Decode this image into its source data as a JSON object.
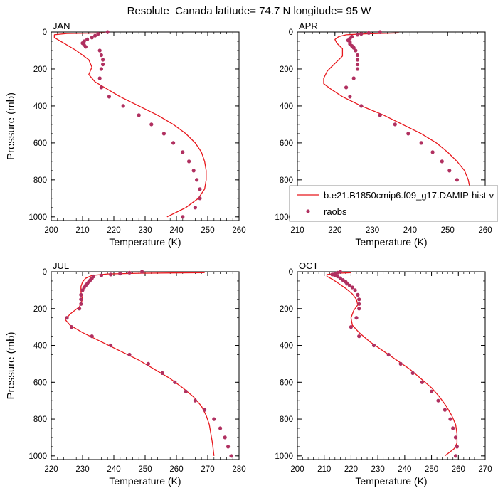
{
  "title": "Resolute_Canada  latitude= 74.7 N longitude= 95 W",
  "legend": {
    "model_label": "b.e21.B1850cmip6.f09_g17.DAMIP-hist-v",
    "obs_label": "raobs"
  },
  "colors": {
    "model_line": "#e8171c",
    "obs_marker": "#b03060",
    "axis": "#000000"
  },
  "chart_data": [
    {
      "type": "line",
      "panel": "JAN",
      "xlabel": "Temperature (K)",
      "ylabel": "Pressure (mb)",
      "xlim": [
        200,
        260
      ],
      "ylim": [
        1020,
        0
      ],
      "xticks": [
        200,
        210,
        220,
        230,
        240,
        250,
        260
      ],
      "yticks": [
        0,
        200,
        400,
        600,
        800,
        1000
      ],
      "model": [
        [
          217,
          5
        ],
        [
          205,
          8
        ],
        [
          201,
          15
        ],
        [
          201,
          30
        ],
        [
          204,
          60
        ],
        [
          208,
          100
        ],
        [
          212,
          150
        ],
        [
          213,
          190
        ],
        [
          212,
          230
        ],
        [
          214,
          270
        ],
        [
          218,
          310
        ],
        [
          222,
          350
        ],
        [
          228,
          400
        ],
        [
          234,
          450
        ],
        [
          239,
          500
        ],
        [
          243,
          550
        ],
        [
          246,
          600
        ],
        [
          248,
          650
        ],
        [
          249,
          700
        ],
        [
          249.5,
          750
        ],
        [
          249.5,
          800
        ],
        [
          249,
          850
        ],
        [
          247,
          900
        ],
        [
          243,
          950
        ],
        [
          237,
          1000
        ]
      ],
      "obs": [
        [
          218,
          0
        ],
        [
          215,
          10
        ],
        [
          214,
          20
        ],
        [
          213,
          30
        ],
        [
          211.5,
          40
        ],
        [
          210.5,
          50
        ],
        [
          210,
          60
        ],
        [
          210.5,
          70
        ],
        [
          211,
          80
        ],
        [
          215.5,
          100
        ],
        [
          216,
          125
        ],
        [
          216.5,
          150
        ],
        [
          216.5,
          175
        ],
        [
          216,
          200
        ],
        [
          215.5,
          250
        ],
        [
          216,
          300
        ],
        [
          218.5,
          350
        ],
        [
          223,
          400
        ],
        [
          228,
          450
        ],
        [
          232,
          500
        ],
        [
          236,
          550
        ],
        [
          239,
          600
        ],
        [
          242,
          650
        ],
        [
          244,
          700
        ],
        [
          245.5,
          750
        ],
        [
          246.5,
          800
        ],
        [
          247.5,
          850
        ],
        [
          247.5,
          900
        ],
        [
          246,
          950
        ],
        [
          242,
          1000
        ]
      ]
    },
    {
      "type": "line",
      "panel": "APR",
      "xlabel": "Temperature (K)",
      "ylabel": "",
      "xlim": [
        210,
        260
      ],
      "ylim": [
        1020,
        0
      ],
      "xticks": [
        210,
        220,
        230,
        240,
        250,
        260
      ],
      "yticks": [
        0,
        200,
        400,
        600,
        800,
        1000
      ],
      "model": [
        [
          237,
          5
        ],
        [
          228,
          10
        ],
        [
          223,
          15
        ],
        [
          221,
          25
        ],
        [
          220,
          40
        ],
        [
          220.5,
          60
        ],
        [
          222,
          90
        ],
        [
          222,
          130
        ],
        [
          220,
          170
        ],
        [
          218,
          210
        ],
        [
          217,
          250
        ],
        [
          217,
          280
        ],
        [
          219,
          310
        ],
        [
          222,
          350
        ],
        [
          227,
          400
        ],
        [
          233,
          450
        ],
        [
          238,
          500
        ],
        [
          243,
          550
        ],
        [
          247,
          600
        ],
        [
          250,
          650
        ],
        [
          252.5,
          700
        ],
        [
          254.5,
          750
        ],
        [
          255.5,
          800
        ],
        [
          256,
          850
        ],
        [
          255,
          900
        ],
        [
          253,
          950
        ],
        [
          249,
          1000
        ]
      ],
      "obs": [
        [
          232,
          0
        ],
        [
          229,
          5
        ],
        [
          227,
          10
        ],
        [
          226,
          15
        ],
        [
          224.5,
          25
        ],
        [
          224,
          35
        ],
        [
          223.5,
          45
        ],
        [
          224,
          55
        ],
        [
          224,
          65
        ],
        [
          224.5,
          75
        ],
        [
          225,
          85
        ],
        [
          225.5,
          100
        ],
        [
          226,
          125
        ],
        [
          226,
          150
        ],
        [
          226,
          175
        ],
        [
          226,
          200
        ],
        [
          225,
          250
        ],
        [
          223,
          300
        ],
        [
          224,
          350
        ],
        [
          227,
          400
        ],
        [
          232,
          450
        ],
        [
          236,
          500
        ],
        [
          239.5,
          550
        ],
        [
          243,
          600
        ],
        [
          246,
          650
        ],
        [
          248.5,
          700
        ],
        [
          250.5,
          750
        ],
        [
          252.5,
          800
        ],
        [
          253.5,
          850
        ],
        [
          254,
          900
        ],
        [
          253,
          950
        ],
        [
          251,
          1000
        ]
      ]
    },
    {
      "type": "line",
      "panel": "JUL",
      "xlabel": "Temperature (K)",
      "ylabel": "Pressure (mb)",
      "xlim": [
        220,
        280
      ],
      "ylim": [
        1020,
        0
      ],
      "xticks": [
        220,
        230,
        240,
        250,
        260,
        270,
        280
      ],
      "yticks": [
        0,
        200,
        400,
        600,
        800,
        1000
      ],
      "model": [
        [
          269,
          5
        ],
        [
          248,
          8
        ],
        [
          238,
          12
        ],
        [
          233,
          20
        ],
        [
          231,
          35
        ],
        [
          230,
          55
        ],
        [
          229.5,
          80
        ],
        [
          229.5,
          110
        ],
        [
          230,
          150
        ],
        [
          229,
          190
        ],
        [
          226,
          230
        ],
        [
          224.5,
          260
        ],
        [
          226,
          290
        ],
        [
          230,
          330
        ],
        [
          236,
          380
        ],
        [
          242,
          430
        ],
        [
          248,
          480
        ],
        [
          253,
          530
        ],
        [
          258,
          580
        ],
        [
          262,
          630
        ],
        [
          265.5,
          680
        ],
        [
          268,
          730
        ],
        [
          269.5,
          780
        ],
        [
          270.5,
          830
        ],
        [
          271,
          880
        ],
        [
          271.5,
          930
        ],
        [
          272,
          1000
        ]
      ],
      "obs": [
        [
          249,
          0
        ],
        [
          245,
          5
        ],
        [
          242,
          10
        ],
        [
          239,
          15
        ],
        [
          236,
          20
        ],
        [
          233.5,
          25
        ],
        [
          233,
          35
        ],
        [
          232.5,
          45
        ],
        [
          232,
          55
        ],
        [
          231.5,
          65
        ],
        [
          231,
          75
        ],
        [
          230.5,
          85
        ],
        [
          230,
          100
        ],
        [
          229.5,
          125
        ],
        [
          229.5,
          150
        ],
        [
          229.5,
          175
        ],
        [
          229,
          200
        ],
        [
          225,
          250
        ],
        [
          226.5,
          300
        ],
        [
          233,
          350
        ],
        [
          239,
          400
        ],
        [
          245,
          450
        ],
        [
          251,
          500
        ],
        [
          255.5,
          550
        ],
        [
          259.5,
          600
        ],
        [
          263,
          650
        ],
        [
          266,
          700
        ],
        [
          269,
          750
        ],
        [
          272,
          800
        ],
        [
          274,
          850
        ],
        [
          275.5,
          900
        ],
        [
          276.5,
          950
        ],
        [
          277.5,
          1000
        ]
      ]
    },
    {
      "type": "line",
      "panel": "OCT",
      "xlabel": "Temperature (K)",
      "ylabel": "",
      "xlim": [
        200,
        270
      ],
      "ylim": [
        1020,
        0
      ],
      "xticks": [
        200,
        210,
        220,
        230,
        240,
        250,
        260,
        270
      ],
      "yticks": [
        0,
        200,
        400,
        600,
        800,
        1000
      ],
      "model": [
        [
          220,
          5
        ],
        [
          215,
          8
        ],
        [
          211,
          15
        ],
        [
          211,
          25
        ],
        [
          213,
          40
        ],
        [
          215,
          60
        ],
        [
          218,
          90
        ],
        [
          220.5,
          120
        ],
        [
          222,
          150
        ],
        [
          222.5,
          180
        ],
        [
          221,
          210
        ],
        [
          220,
          250
        ],
        [
          220.5,
          290
        ],
        [
          223,
          330
        ],
        [
          227,
          380
        ],
        [
          232,
          430
        ],
        [
          237,
          480
        ],
        [
          242,
          530
        ],
        [
          246,
          580
        ],
        [
          250,
          630
        ],
        [
          253,
          680
        ],
        [
          255.5,
          730
        ],
        [
          257.5,
          780
        ],
        [
          259,
          830
        ],
        [
          259.5,
          880
        ],
        [
          259.5,
          930
        ],
        [
          258.5,
          960
        ],
        [
          255,
          1000
        ]
      ],
      "obs": [
        [
          216,
          0
        ],
        [
          215,
          5
        ],
        [
          214,
          10
        ],
        [
          213,
          15
        ],
        [
          214,
          20
        ],
        [
          215,
          25
        ],
        [
          216,
          35
        ],
        [
          217,
          45
        ],
        [
          218,
          55
        ],
        [
          218.5,
          65
        ],
        [
          219.5,
          75
        ],
        [
          220.5,
          85
        ],
        [
          221.5,
          100
        ],
        [
          222.5,
          125
        ],
        [
          223,
          150
        ],
        [
          223,
          175
        ],
        [
          223,
          200
        ],
        [
          222,
          250
        ],
        [
          220,
          300
        ],
        [
          223,
          350
        ],
        [
          228.5,
          400
        ],
        [
          234,
          450
        ],
        [
          238.5,
          500
        ],
        [
          243,
          550
        ],
        [
          246.5,
          600
        ],
        [
          250,
          650
        ],
        [
          252.5,
          700
        ],
        [
          255,
          750
        ],
        [
          257,
          800
        ],
        [
          258,
          850
        ],
        [
          259,
          900
        ],
        [
          259.5,
          950
        ],
        [
          259,
          1000
        ]
      ]
    }
  ]
}
